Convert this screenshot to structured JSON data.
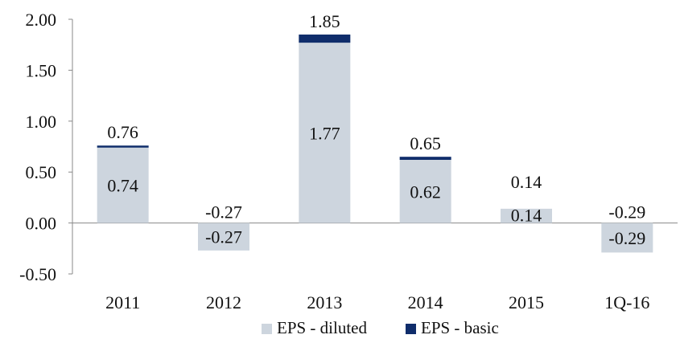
{
  "chart_data": {
    "type": "bar",
    "categories": [
      "2011",
      "2012",
      "2013",
      "2014",
      "2015",
      "1Q-16"
    ],
    "series": [
      {
        "name": "EPS - diluted",
        "values": [
          0.74,
          -0.27,
          1.77,
          0.62,
          0.14,
          -0.29
        ],
        "color": "#cdd5de"
      },
      {
        "name": "EPS - basic",
        "values": [
          0.76,
          -0.27,
          1.85,
          0.65,
          0.14,
          -0.29
        ],
        "color": "#0f2d6b"
      }
    ],
    "y_ticks": [
      "2.00",
      "1.50",
      "1.00",
      "0.50",
      "0.00",
      "-0.50"
    ],
    "ylim": [
      -0.5,
      2.0
    ],
    "grid": false,
    "legend_position": "bottom-center",
    "title": "",
    "xlabel": "",
    "ylabel": ""
  }
}
